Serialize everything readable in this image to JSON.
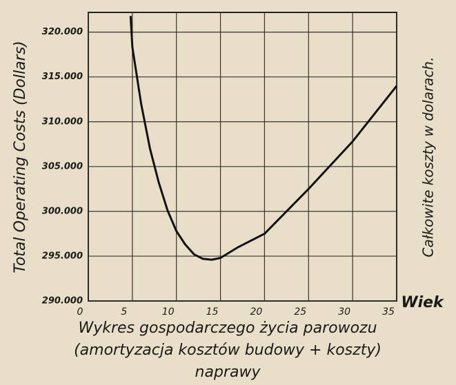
{
  "chart_data": {
    "type": "line",
    "y_label": "Total Operating Costs (Dollars)",
    "y2_label": "Całkowite koszty w dolarach.",
    "x_label": "Wiek",
    "caption": [
      "Wykres gospodarczego życia parowozu",
      "(amortyzacja kosztów budowy + koszty)",
      "naprawy"
    ],
    "x": [
      4.8,
      5,
      6,
      7,
      8,
      9,
      10,
      11,
      12,
      13,
      14,
      15,
      17,
      20,
      25,
      30,
      35
    ],
    "series": [
      {
        "color": "#111111",
        "values": [
          321800,
          318300,
          312000,
          307000,
          303200,
          300100,
          297800,
          296300,
          295200,
          294700,
          294600,
          294800,
          296000,
          297500,
          302500,
          307800,
          314000
        ]
      }
    ],
    "xlim": [
      0,
      35
    ],
    "xticks": [
      0,
      5,
      10,
      15,
      20,
      25,
      30,
      35
    ],
    "ylim": [
      290000,
      322200
    ],
    "yticks": [
      {
        "value": 290000,
        "label": "290.000"
      },
      {
        "value": 295000,
        "label": "295.000"
      },
      {
        "value": 300000,
        "label": "300.000"
      },
      {
        "value": 305000,
        "label": "305.000"
      },
      {
        "value": 310000,
        "label": "310.000"
      },
      {
        "value": 315000,
        "label": "315.000"
      },
      {
        "value": 320000,
        "label": "320.000"
      }
    ],
    "grid": true
  }
}
